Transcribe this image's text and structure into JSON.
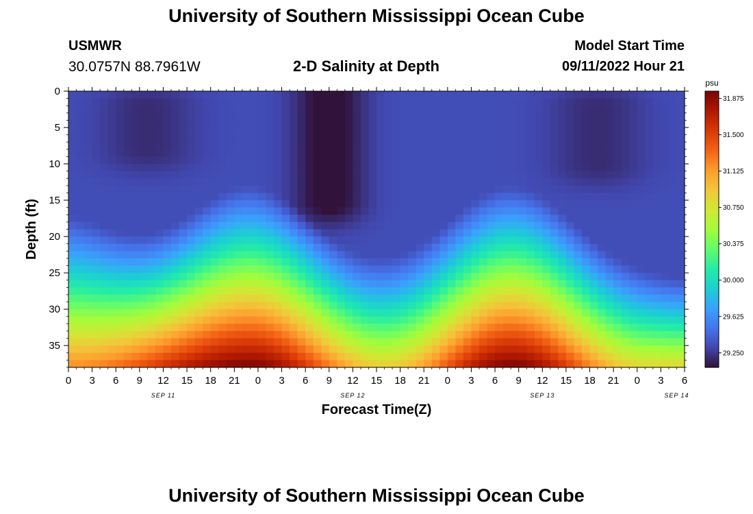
{
  "header": {
    "title": "University of Southern Mississippi Ocean Cube",
    "station": "USMWR",
    "coordinates": "30.0757N  88.7961W",
    "subtitle": "2-D Salinity at Depth",
    "model_start_label": "Model Start Time",
    "model_start_value": "09/11/2022 Hour 21"
  },
  "footer": {
    "title": "University of Southern Mississippi Ocean Cube"
  },
  "chart_data": {
    "type": "heatmap",
    "title": "2-D Salinity at Depth",
    "xlabel": "Forecast Time(Z)",
    "ylabel": "Depth (ft)",
    "x_tick_labels": [
      "0",
      "3",
      "6",
      "9",
      "12",
      "15",
      "18",
      "21",
      "0",
      "3",
      "6",
      "9",
      "12",
      "15",
      "18",
      "21",
      "0",
      "3",
      "6",
      "9",
      "12",
      "15",
      "18",
      "21",
      "0",
      "3",
      "6"
    ],
    "x_range_hours": [
      0,
      78
    ],
    "date_labels": [
      {
        "label": "SEP 11",
        "hour": 12
      },
      {
        "label": "SEP 12",
        "hour": 36
      },
      {
        "label": "SEP 13",
        "hour": 60
      },
      {
        "label": "SEP 14",
        "hour": 77
      }
    ],
    "y_ticks": [
      "0",
      "5",
      "10",
      "15",
      "20",
      "25",
      "30",
      "35"
    ],
    "ylim": [
      0,
      38
    ],
    "y_inverted": true,
    "colorbar": {
      "unit": "psu",
      "tick_labels": [
        "31.875",
        "31.500",
        "31.125",
        "30.750",
        "30.375",
        "30.000",
        "29.625",
        "29.250"
      ],
      "range": [
        29.1,
        31.95
      ],
      "colormap": [
        "#30123b",
        "#4146ac",
        "#4675ed",
        "#39a2fc",
        "#1bcfd4",
        "#24eca6",
        "#61fc6c",
        "#a4fc3b",
        "#d1e834",
        "#f3c63a",
        "#fe9b2d",
        "#f36315",
        "#d93807",
        "#b11901",
        "#7a0403"
      ]
    },
    "salinity_field": {
      "description_hours": [
        0,
        78
      ],
      "base_surface": 29.34,
      "dark_patches": [
        {
          "center_hour": 10,
          "depth_top": 2,
          "depth_bottom": 8,
          "value": 29.2
        },
        {
          "center_hour": 33,
          "depth_top": 0,
          "depth_bottom": 15,
          "value": 29.05
        },
        {
          "center_hour": 67,
          "depth_top": 2,
          "depth_bottom": 10,
          "value": 29.2
        }
      ],
      "bottom_peaks": [
        {
          "hour": 23,
          "value": 31.95
        },
        {
          "hour": 56,
          "value": 31.95
        }
      ],
      "bottom_troughs": [
        {
          "hour": 40,
          "value": 30.9
        },
        {
          "hour": 73,
          "value": 30.85
        },
        {
          "hour": 0,
          "value": 31.2
        }
      ]
    }
  }
}
